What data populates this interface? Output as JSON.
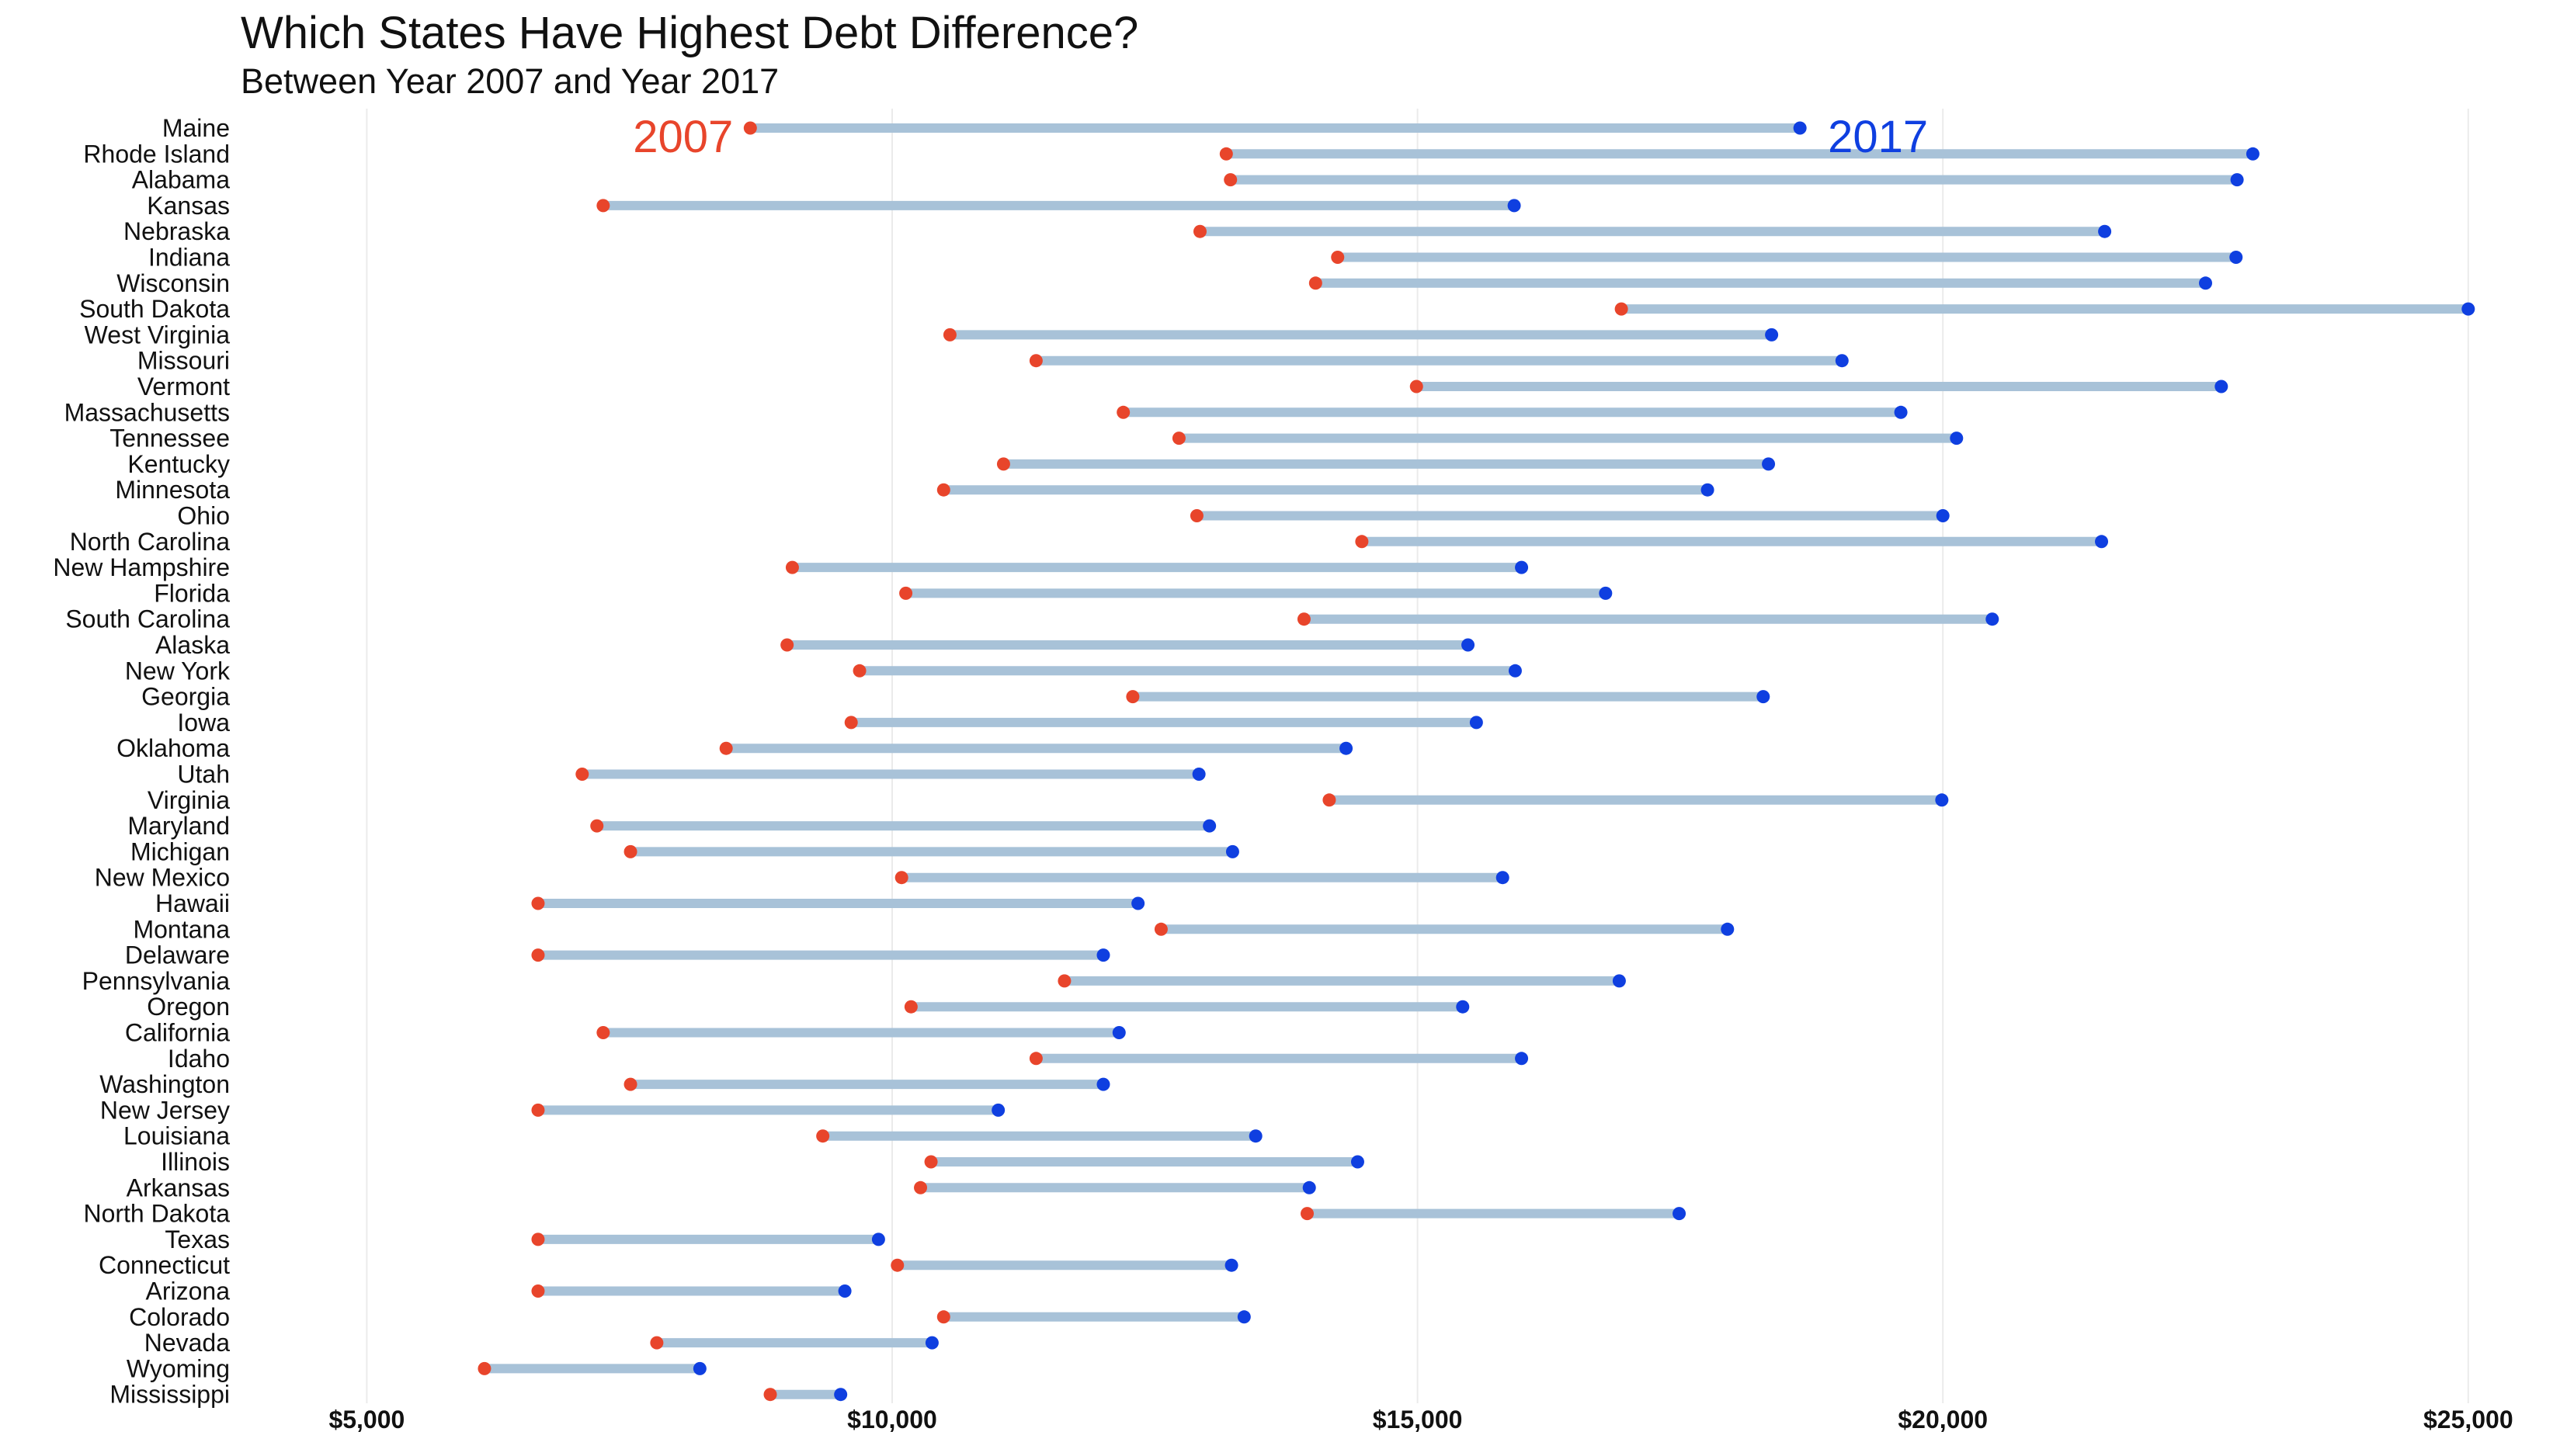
{
  "chart_data": {
    "type": "dumbbell",
    "title": "Which States Have Highest Debt Difference?",
    "subtitle": "Between Year 2007 and Year 2017",
    "xlim": [
      3800,
      25600
    ],
    "x_ticks": [
      5000,
      10000,
      15000,
      20000,
      25000
    ],
    "x_tick_labels": [
      "$5,000",
      "$10,000",
      "$15,000",
      "$20,000",
      "$25,000"
    ],
    "grid": "vertical",
    "series_labels": {
      "start": "2007",
      "end": "2017"
    },
    "colors": {
      "start": "#e8452b",
      "end": "#0f3fe0",
      "bar": "#a8c2d8",
      "grid": "#ebebeb"
    },
    "rows": [
      {
        "state": "Maine",
        "v2007": 8650,
        "v2017": 18640
      },
      {
        "state": "Rhode Island",
        "v2007": 13180,
        "v2017": 22950
      },
      {
        "state": "Alabama",
        "v2007": 13220,
        "v2017": 22800
      },
      {
        "state": "Kansas",
        "v2007": 7250,
        "v2017": 15920
      },
      {
        "state": "Nebraska",
        "v2007": 12930,
        "v2017": 21540
      },
      {
        "state": "Indiana",
        "v2007": 14240,
        "v2017": 22790
      },
      {
        "state": "Wisconsin",
        "v2007": 14030,
        "v2017": 22500
      },
      {
        "state": "South Dakota",
        "v2007": 16940,
        "v2017": 25000
      },
      {
        "state": "West Virginia",
        "v2007": 10550,
        "v2017": 18370
      },
      {
        "state": "Missouri",
        "v2007": 11370,
        "v2017": 19040
      },
      {
        "state": "Vermont",
        "v2007": 14990,
        "v2017": 22650
      },
      {
        "state": "Massachusetts",
        "v2007": 12200,
        "v2017": 19600
      },
      {
        "state": "Tennessee",
        "v2007": 12730,
        "v2017": 20130
      },
      {
        "state": "Kentucky",
        "v2007": 11060,
        "v2017": 18340
      },
      {
        "state": "Minnesota",
        "v2007": 10490,
        "v2017": 17760
      },
      {
        "state": "Ohio",
        "v2007": 12900,
        "v2017": 20000
      },
      {
        "state": "North Carolina",
        "v2007": 14470,
        "v2017": 21510
      },
      {
        "state": "New Hampshire",
        "v2007": 9050,
        "v2017": 15990
      },
      {
        "state": "Florida",
        "v2007": 10130,
        "v2017": 16790
      },
      {
        "state": "South Carolina",
        "v2007": 13920,
        "v2017": 20470
      },
      {
        "state": "Alaska",
        "v2007": 9000,
        "v2017": 15480
      },
      {
        "state": "New York",
        "v2007": 9690,
        "v2017": 15930
      },
      {
        "state": "Georgia",
        "v2007": 12290,
        "v2017": 18290
      },
      {
        "state": "Iowa",
        "v2007": 9610,
        "v2017": 15560
      },
      {
        "state": "Oklahoma",
        "v2007": 8420,
        "v2017": 14320
      },
      {
        "state": "Utah",
        "v2007": 7050,
        "v2017": 12920
      },
      {
        "state": "Virginia",
        "v2007": 14160,
        "v2017": 19990
      },
      {
        "state": "Maryland",
        "v2007": 7190,
        "v2017": 13020
      },
      {
        "state": "Michigan",
        "v2007": 7510,
        "v2017": 13240
      },
      {
        "state": "New Mexico",
        "v2007": 10090,
        "v2017": 15810
      },
      {
        "state": "Hawaii",
        "v2007": 6630,
        "v2017": 12340
      },
      {
        "state": "Montana",
        "v2007": 12560,
        "v2017": 17950
      },
      {
        "state": "Delaware",
        "v2007": 6630,
        "v2017": 12010
      },
      {
        "state": "Pennsylvania",
        "v2007": 11640,
        "v2017": 16920
      },
      {
        "state": "Oregon",
        "v2007": 10180,
        "v2017": 15430
      },
      {
        "state": "California",
        "v2007": 7250,
        "v2017": 12160
      },
      {
        "state": "Idaho",
        "v2007": 11370,
        "v2017": 15990
      },
      {
        "state": "Washington",
        "v2007": 7510,
        "v2017": 12010
      },
      {
        "state": "New Jersey",
        "v2007": 6630,
        "v2017": 11010
      },
      {
        "state": "Louisiana",
        "v2007": 9340,
        "v2017": 13460
      },
      {
        "state": "Illinois",
        "v2007": 10370,
        "v2017": 14430
      },
      {
        "state": "Arkansas",
        "v2007": 10270,
        "v2017": 13970
      },
      {
        "state": "North Dakota",
        "v2007": 13950,
        "v2017": 17490
      },
      {
        "state": "Texas",
        "v2007": 6630,
        "v2017": 9870
      },
      {
        "state": "Connecticut",
        "v2007": 10050,
        "v2017": 13230
      },
      {
        "state": "Arizona",
        "v2007": 6630,
        "v2017": 9550
      },
      {
        "state": "Colorado",
        "v2007": 10490,
        "v2017": 13350
      },
      {
        "state": "Nevada",
        "v2007": 7760,
        "v2017": 10380
      },
      {
        "state": "Wyoming",
        "v2007": 6120,
        "v2017": 8170
      },
      {
        "state": "Mississippi",
        "v2007": 8840,
        "v2017": 9510
      }
    ]
  }
}
